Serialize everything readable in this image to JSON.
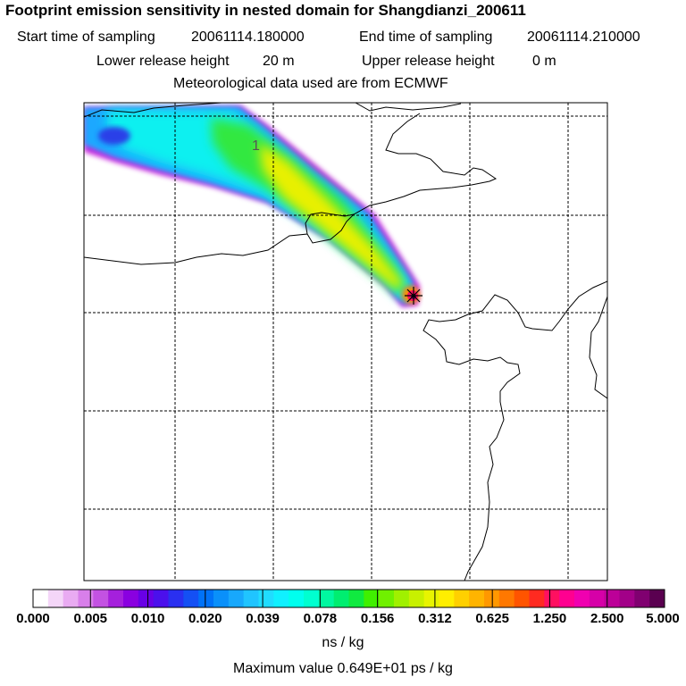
{
  "title": "Footprint emission sensitivity in nested domain for Shangdianzi_200611",
  "sampling": {
    "start_label": "Start time of sampling",
    "start_value": "20061114.180000",
    "end_label": "End time of sampling",
    "end_value": "20061114.210000"
  },
  "release": {
    "lower_label": "Lower release height",
    "lower_value": "20 m",
    "upper_label": "Upper release height",
    "upper_value": "0 m"
  },
  "met_source": "Meteorological data used are from ECMWF",
  "map": {
    "cluster_label": "1",
    "station_marker": "receptor-station"
  },
  "colorbar": {
    "tick_labels": [
      "0.000",
      "0.005",
      "0.010",
      "0.020",
      "0.039",
      "0.078",
      "0.156",
      "0.312",
      "0.625",
      "1.250",
      "2.500",
      "5.000"
    ],
    "colors": [
      "#ffffff",
      "#f4d6f8",
      "#e9abf2",
      "#d87fea",
      "#c352e2",
      "#a520dc",
      "#8a00e0",
      "#6800e6",
      "#4b10ec",
      "#2a30f0",
      "#1450f4",
      "#0072f8",
      "#0a90fa",
      "#18a8fc",
      "#20c4ff",
      "#20dcff",
      "#10f0ff",
      "#00ffee",
      "#00ffd0",
      "#00f8a0",
      "#00ee70",
      "#10ea40",
      "#40f000",
      "#70f000",
      "#a0f000",
      "#c8f000",
      "#e8f400",
      "#ffee00",
      "#ffd000",
      "#ffb400",
      "#ff9800",
      "#ff7800",
      "#ff5400",
      "#ff2a20",
      "#ff1060",
      "#ff0090",
      "#f000b0",
      "#d600a8",
      "#bc0098",
      "#a20088",
      "#800070",
      "#5a0050"
    ],
    "units": "ns / kg"
  },
  "max_value_text": "Maximum value  0.649E+01 ps / kg"
}
